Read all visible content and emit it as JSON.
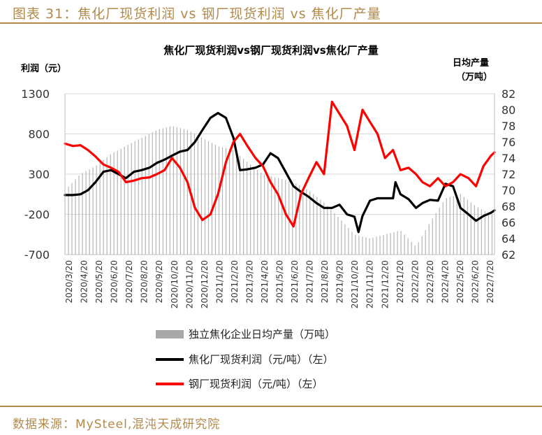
{
  "figure_title": "图表 31：焦化厂现货利润 vs 钢厂现货利润 vs 焦化厂产量",
  "source": "数据来源：MySteel,混沌天成研究院",
  "colors": {
    "accent": "#b3894a",
    "coke_profit": "#000000",
    "steel_profit": "#ff0000",
    "output": "#b5b5b5"
  },
  "chart_data": {
    "type": "line",
    "title": "焦化厂现货利润vs钢厂现货利润vs焦化厂产量",
    "ylabel": "利润（元）",
    "y2label_line1": "日均产量",
    "y2label_line2": "（万吨）",
    "ylim": [
      -700,
      1300
    ],
    "y_ticks": [
      -700,
      -200,
      300,
      800,
      1300
    ],
    "y_tick_labels": [
      "-700",
      "-200",
      "300",
      "800",
      "1300"
    ],
    "y2lim": [
      62,
      82
    ],
    "y2_ticks": [
      62,
      64,
      66,
      68,
      70,
      72,
      74,
      76,
      78,
      80,
      82
    ],
    "y2_tick_labels": [
      "62",
      "64",
      "66",
      "68",
      "70",
      "72",
      "74",
      "76",
      "78",
      "80",
      "82"
    ],
    "x_tick_labels": [
      "2020/3/20",
      "2020/4/20",
      "2020/5/20",
      "2020/6/20",
      "2020/7/20",
      "2020/8/20",
      "2020/9/20",
      "2020/10/20",
      "2020/11/20",
      "2020/12/20",
      "2021/1/20",
      "2021/2/20",
      "2021/3/20",
      "2021/4/20",
      "2021/5/20",
      "2021/6/20",
      "2021/7/20",
      "2021/8/20",
      "2021/9/20",
      "2021/10/20",
      "2021/11/20",
      "2021/12/20",
      "2022/1/20",
      "2022/2/20",
      "2022/3/20",
      "2022/4/20",
      "2022/5/20",
      "2022/6/20",
      "2022/7/20"
    ],
    "grid": true,
    "legend_position": "bottom",
    "series": [
      {
        "name": "独立焦化企业日均产量（万吨）",
        "kind": "bar",
        "axis": "right",
        "x": [
          "2020-03-20",
          "2020-04-20",
          "2020-05-20",
          "2020-06-20",
          "2020-07-20",
          "2020-08-20",
          "2020-09-20",
          "2020-10-20",
          "2020-11-20",
          "2020-12-20",
          "2021-01-20",
          "2021-02-20",
          "2021-03-20",
          "2021-04-20",
          "2021-05-20",
          "2021-06-20",
          "2021-07-20",
          "2021-08-20",
          "2021-09-20",
          "2021-10-20",
          "2021-11-20",
          "2021-12-20",
          "2022-01-20",
          "2022-02-20",
          "2022-03-20",
          "2022-04-20",
          "2022-05-20",
          "2022-06-20",
          "2022-07-20",
          "2022-07-27"
        ],
        "values": [
          70,
          72,
          73,
          74.5,
          75.5,
          76.5,
          77.5,
          78,
          77.5,
          76.5,
          75.5,
          75,
          73.5,
          72,
          71.5,
          71,
          70,
          68.5,
          66.5,
          64.5,
          64,
          64.5,
          65,
          63,
          66,
          69,
          69.5,
          68,
          67,
          67
        ]
      },
      {
        "name": "焦化厂现货利润（元/吨）（左）",
        "kind": "line",
        "axis": "left",
        "x": [
          "2020-03-20",
          "2020-04-05",
          "2020-04-20",
          "2020-05-05",
          "2020-05-20",
          "2020-06-05",
          "2020-06-20",
          "2020-07-05",
          "2020-07-20",
          "2020-08-05",
          "2020-08-20",
          "2020-09-05",
          "2020-09-20",
          "2020-10-05",
          "2020-10-20",
          "2020-11-05",
          "2020-11-20",
          "2020-12-05",
          "2020-12-20",
          "2021-01-05",
          "2021-01-20",
          "2021-02-05",
          "2021-02-20",
          "2021-03-05",
          "2021-03-20",
          "2021-04-05",
          "2021-04-20",
          "2021-05-05",
          "2021-05-20",
          "2021-06-05",
          "2021-06-20",
          "2021-07-05",
          "2021-07-20",
          "2021-08-05",
          "2021-08-20",
          "2021-09-05",
          "2021-09-20",
          "2021-10-05",
          "2021-10-20",
          "2021-10-28",
          "2021-11-05",
          "2021-11-20",
          "2021-12-05",
          "2021-12-20",
          "2022-01-05",
          "2022-01-10",
          "2022-01-20",
          "2022-02-05",
          "2022-02-20",
          "2022-03-05",
          "2022-03-20",
          "2022-04-05",
          "2022-04-20",
          "2022-05-05",
          "2022-05-20",
          "2022-06-05",
          "2022-06-20",
          "2022-07-05",
          "2022-07-20",
          "2022-07-27"
        ],
        "values": [
          40,
          40,
          50,
          100,
          200,
          330,
          350,
          300,
          250,
          330,
          350,
          380,
          440,
          480,
          530,
          580,
          600,
          700,
          850,
          1000,
          1060,
          1000,
          750,
          350,
          360,
          380,
          420,
          560,
          500,
          320,
          150,
          80,
          20,
          -60,
          -120,
          -120,
          -80,
          -200,
          -230,
          -420,
          -220,
          -30,
          0,
          0,
          0,
          200,
          50,
          -10,
          -120,
          -60,
          -20,
          -30,
          180,
          150,
          -120,
          -200,
          -280,
          -220,
          -180,
          -150
        ]
      },
      {
        "name": "钢厂现货利润（元/吨）（左）",
        "kind": "line",
        "axis": "left",
        "x": [
          "2020-03-20",
          "2020-04-05",
          "2020-04-20",
          "2020-05-05",
          "2020-05-20",
          "2020-06-05",
          "2020-06-20",
          "2020-07-05",
          "2020-07-20",
          "2020-08-05",
          "2020-08-20",
          "2020-09-05",
          "2020-09-20",
          "2020-10-05",
          "2020-10-20",
          "2020-11-05",
          "2020-11-20",
          "2020-12-05",
          "2020-12-20",
          "2021-01-05",
          "2021-01-20",
          "2021-02-05",
          "2021-02-20",
          "2021-03-05",
          "2021-03-20",
          "2021-04-05",
          "2021-04-20",
          "2021-05-05",
          "2021-05-20",
          "2021-06-05",
          "2021-06-20",
          "2021-07-05",
          "2021-07-20",
          "2021-08-05",
          "2021-08-20",
          "2021-09-05",
          "2021-09-20",
          "2021-10-05",
          "2021-10-20",
          "2021-11-05",
          "2021-11-20",
          "2021-12-05",
          "2021-12-20",
          "2022-01-05",
          "2022-01-20",
          "2022-02-05",
          "2022-02-20",
          "2022-03-05",
          "2022-03-20",
          "2022-04-05",
          "2022-04-20",
          "2022-05-05",
          "2022-05-20",
          "2022-06-05",
          "2022-06-20",
          "2022-07-05",
          "2022-07-20",
          "2022-07-27"
        ],
        "values": [
          680,
          650,
          660,
          600,
          520,
          420,
          380,
          330,
          200,
          220,
          250,
          260,
          300,
          350,
          500,
          380,
          200,
          -120,
          -270,
          -200,
          50,
          450,
          700,
          800,
          650,
          500,
          400,
          200,
          50,
          -200,
          -350,
          50,
          250,
          450,
          300,
          1200,
          1050,
          900,
          600,
          1100,
          950,
          800,
          500,
          600,
          350,
          380,
          300,
          200,
          150,
          250,
          150,
          200,
          300,
          250,
          150,
          400,
          530,
          570
        ]
      }
    ]
  }
}
